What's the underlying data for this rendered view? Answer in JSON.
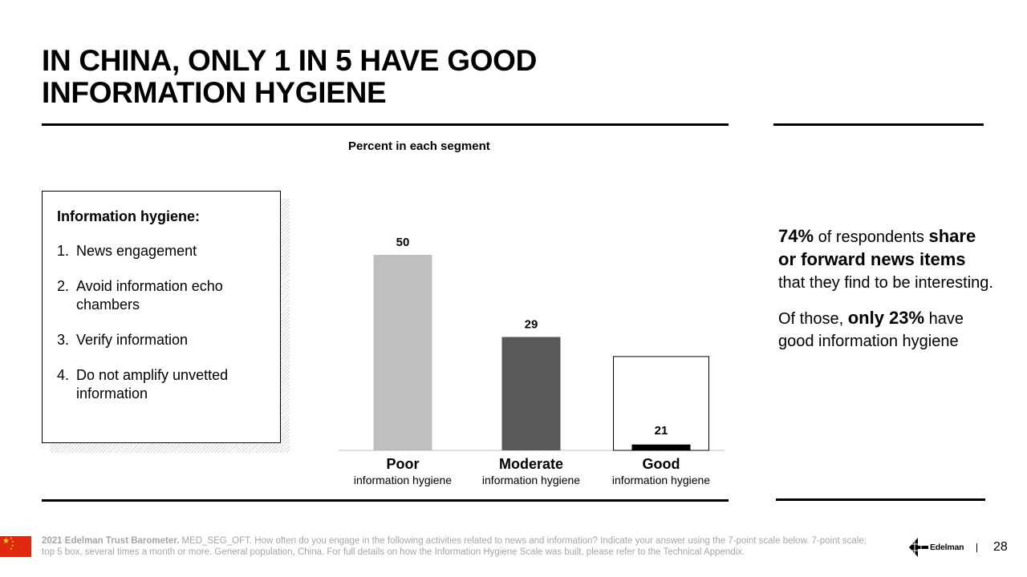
{
  "title_line1": "IN CHINA, ONLY 1 IN 5 HAVE GOOD",
  "title_line2": "INFORMATION HYGIENE",
  "definition": {
    "heading": "Information hygiene:",
    "items": [
      {
        "num": "1.",
        "text": "News engagement"
      },
      {
        "num": "2.",
        "text": "Avoid information echo chambers"
      },
      {
        "num": "3.",
        "text": "Verify information"
      },
      {
        "num": "4.",
        "text": "Do not amplify unvetted information"
      }
    ]
  },
  "chart_data": {
    "type": "bar",
    "title": "Percent in each segment",
    "categories": [
      "Poor",
      "Moderate",
      "Good"
    ],
    "category_sublabels": [
      "information hygiene",
      "information hygiene",
      "information hygiene"
    ],
    "values": [
      50,
      29,
      21
    ],
    "data_labels": [
      "50",
      "29",
      "21"
    ],
    "colors": [
      "#bfbfbf",
      "#595959",
      "#000000"
    ],
    "xlabel": "",
    "ylabel": "",
    "ylim": [
      0,
      50
    ],
    "grid": false,
    "legend": "none",
    "highlight": {
      "category": "Good",
      "outline_value": 24,
      "bar_value": 1.5
    }
  },
  "side": {
    "p1": {
      "pct": "74%",
      "t1": "of respondents",
      "bold": "share or forward news items",
      "t2": "that they find to be interesting."
    },
    "p2": {
      "t1": "Of those,",
      "bold": "only 23%",
      "t2": "have good information hygiene"
    }
  },
  "footer": {
    "source_bold": "2021 Edelman Trust Barometer.",
    "source_text": "MED_SEG_OFT. How often do you engage in the following activities related to news and information? Indicate your answer using the 7-point scale below. 7-point scale; top 5 box, several times a month or more. General population, China. For full details on how the Information Hygiene Scale was built, please refer to the Technical Appendix.",
    "logo_text": "Edelman",
    "page_number": "28"
  },
  "colors": {
    "flag_red": "#de2910",
    "flag_yellow": "#ffde00",
    "footnote_gray": "#a6a6a6"
  },
  "icons": {
    "flag": "china-flag-icon",
    "logo": "edelman-logo-icon"
  }
}
